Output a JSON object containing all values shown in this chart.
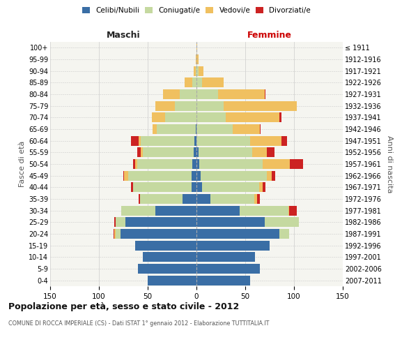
{
  "age_groups": [
    "0-4",
    "5-9",
    "10-14",
    "15-19",
    "20-24",
    "25-29",
    "30-34",
    "35-39",
    "40-44",
    "45-49",
    "50-54",
    "55-59",
    "60-64",
    "65-69",
    "70-74",
    "75-79",
    "80-84",
    "85-89",
    "90-94",
    "95-99",
    "100+"
  ],
  "birth_years": [
    "2007-2011",
    "2002-2006",
    "1997-2001",
    "1992-1996",
    "1987-1991",
    "1982-1986",
    "1977-1981",
    "1972-1976",
    "1967-1971",
    "1962-1966",
    "1957-1961",
    "1952-1956",
    "1947-1951",
    "1942-1946",
    "1937-1941",
    "1932-1936",
    "1927-1931",
    "1922-1926",
    "1917-1921",
    "1912-1916",
    "≤ 1911"
  ],
  "colors": {
    "celibi": "#3a6ea5",
    "coniugati": "#c5d9a0",
    "vedovi": "#f0c060",
    "divorziati": "#cc2222"
  },
  "maschi": {
    "celibi": [
      50,
      60,
      55,
      63,
      78,
      73,
      42,
      14,
      5,
      5,
      4,
      3,
      2,
      1,
      0,
      0,
      0,
      0,
      0,
      0,
      0
    ],
    "coniugati": [
      0,
      0,
      0,
      0,
      5,
      10,
      35,
      44,
      60,
      65,
      57,
      52,
      55,
      40,
      32,
      22,
      17,
      4,
      1,
      0,
      0
    ],
    "vedovi": [
      0,
      0,
      0,
      0,
      1,
      0,
      0,
      0,
      0,
      4,
      2,
      2,
      2,
      4,
      14,
      20,
      17,
      8,
      2,
      1,
      0
    ],
    "divorziati": [
      0,
      0,
      0,
      0,
      1,
      1,
      0,
      1,
      2,
      1,
      2,
      4,
      8,
      0,
      0,
      0,
      0,
      0,
      0,
      0,
      0
    ]
  },
  "femmine": {
    "celibi": [
      55,
      65,
      60,
      75,
      85,
      70,
      44,
      14,
      6,
      4,
      3,
      2,
      0,
      0,
      0,
      0,
      0,
      0,
      0,
      0,
      0
    ],
    "coniugati": [
      0,
      0,
      0,
      0,
      10,
      35,
      50,
      45,
      58,
      68,
      65,
      55,
      55,
      37,
      30,
      28,
      22,
      6,
      2,
      0,
      0
    ],
    "vedovi": [
      0,
      0,
      0,
      0,
      0,
      0,
      1,
      3,
      4,
      5,
      28,
      15,
      32,
      28,
      55,
      75,
      48,
      22,
      5,
      2,
      1
    ],
    "divorziati": [
      0,
      0,
      0,
      0,
      0,
      0,
      8,
      3,
      3,
      4,
      13,
      8,
      6,
      1,
      2,
      0,
      1,
      0,
      0,
      0,
      0
    ]
  },
  "xlim": 150,
  "title": "Popolazione per età, sesso e stato civile - 2012",
  "subtitle": "COMUNE DI ROCCA IMPERIALE (CS) - Dati ISTAT 1° gennaio 2012 - Elaborazione TUTTITALIA.IT",
  "ylabel_left": "Fasce di età",
  "ylabel_right": "Anni di nascita",
  "xlabel_left": "Maschi",
  "xlabel_right": "Femmine",
  "bg_color": "#f5f5f0",
  "grid_color": "#cccccc",
  "center_line_color": "#aaaaaa"
}
